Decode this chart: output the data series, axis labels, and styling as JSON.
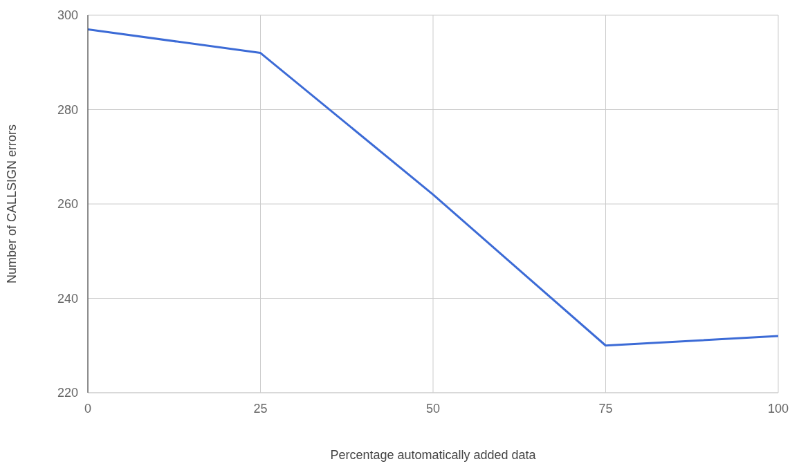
{
  "chart_data": {
    "type": "line",
    "xlabel": "Percentage automatically added data",
    "ylabel": "Number of CALLSIGN errors",
    "x": [
      0,
      25,
      50,
      75,
      100
    ],
    "series": [
      {
        "color": "#3c6bd6",
        "values": [
          297,
          292,
          262,
          230,
          232
        ]
      }
    ],
    "xlim": [
      0,
      100
    ],
    "xticks": [
      0,
      25,
      50,
      75,
      100
    ],
    "ylim": [
      220,
      300
    ],
    "yticks": [
      220,
      240,
      260,
      280,
      300
    ],
    "grid": true,
    "legend": false,
    "marker": "none",
    "line_style": "solid"
  }
}
